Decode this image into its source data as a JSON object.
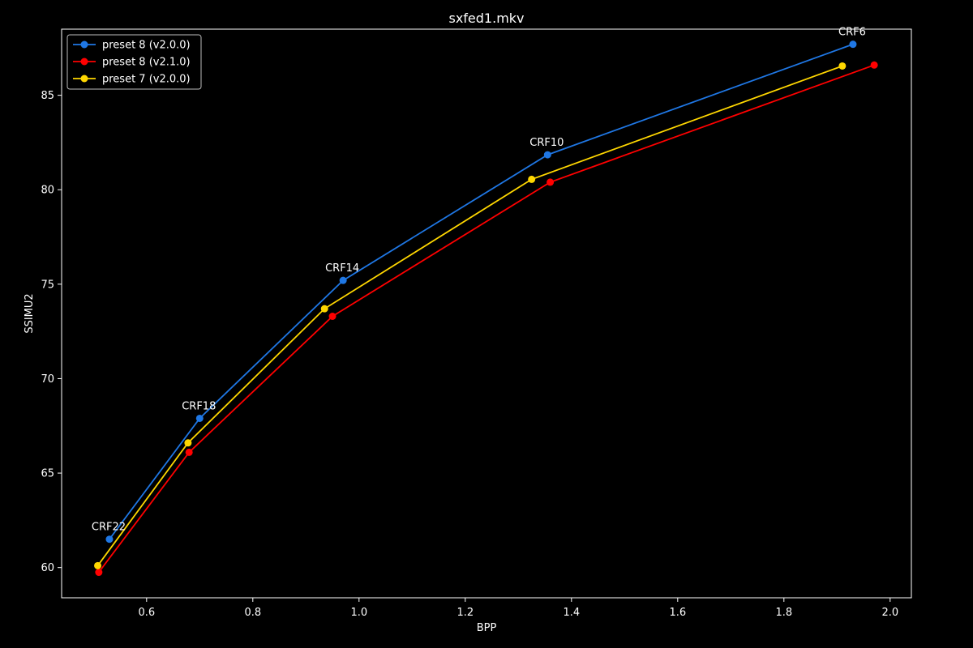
{
  "chart_data": {
    "type": "line",
    "title": "sxfed1.mkv",
    "xlabel": "BPP",
    "ylabel": "SSIMU2",
    "xlim": [
      0.44,
      2.04
    ],
    "ylim": [
      58.4,
      88.5
    ],
    "xticks": [
      0.6,
      0.8,
      1.0,
      1.2,
      1.4,
      1.6,
      1.8,
      2.0
    ],
    "xtick_labels": [
      "0.6",
      "0.8",
      "1.0",
      "1.2",
      "1.4",
      "1.6",
      "1.8",
      "2.0"
    ],
    "yticks": [
      60,
      65,
      70,
      75,
      80,
      85
    ],
    "ytick_labels": [
      "60",
      "65",
      "70",
      "75",
      "80",
      "85"
    ],
    "grid": false,
    "legend_position": "top-left",
    "series": [
      {
        "name": "preset 8 (v2.0.0)",
        "color": "#1f77e4",
        "x": [
          0.53,
          0.7,
          0.97,
          1.355,
          1.93
        ],
        "y": [
          61.5,
          67.9,
          75.2,
          81.85,
          87.7
        ]
      },
      {
        "name": "preset 8 (v2.1.0)",
        "color": "#ff0000",
        "x": [
          0.51,
          0.68,
          0.95,
          1.36,
          1.97
        ],
        "y": [
          59.75,
          66.1,
          73.3,
          80.4,
          86.6
        ]
      },
      {
        "name": "preset 7 (v2.0.0)",
        "color": "#ffd700",
        "x": [
          0.508,
          0.678,
          0.935,
          1.325,
          1.91
        ],
        "y": [
          60.1,
          66.6,
          73.7,
          80.55,
          86.55
        ]
      }
    ],
    "annotations": [
      {
        "text": "CRF22",
        "x": 0.53,
        "y": 61.5
      },
      {
        "text": "CRF18",
        "x": 0.7,
        "y": 67.9
      },
      {
        "text": "CRF14",
        "x": 0.97,
        "y": 75.2
      },
      {
        "text": "CRF10",
        "x": 1.355,
        "y": 81.85
      },
      {
        "text": "CRF6",
        "x": 1.93,
        "y": 87.7
      }
    ]
  }
}
